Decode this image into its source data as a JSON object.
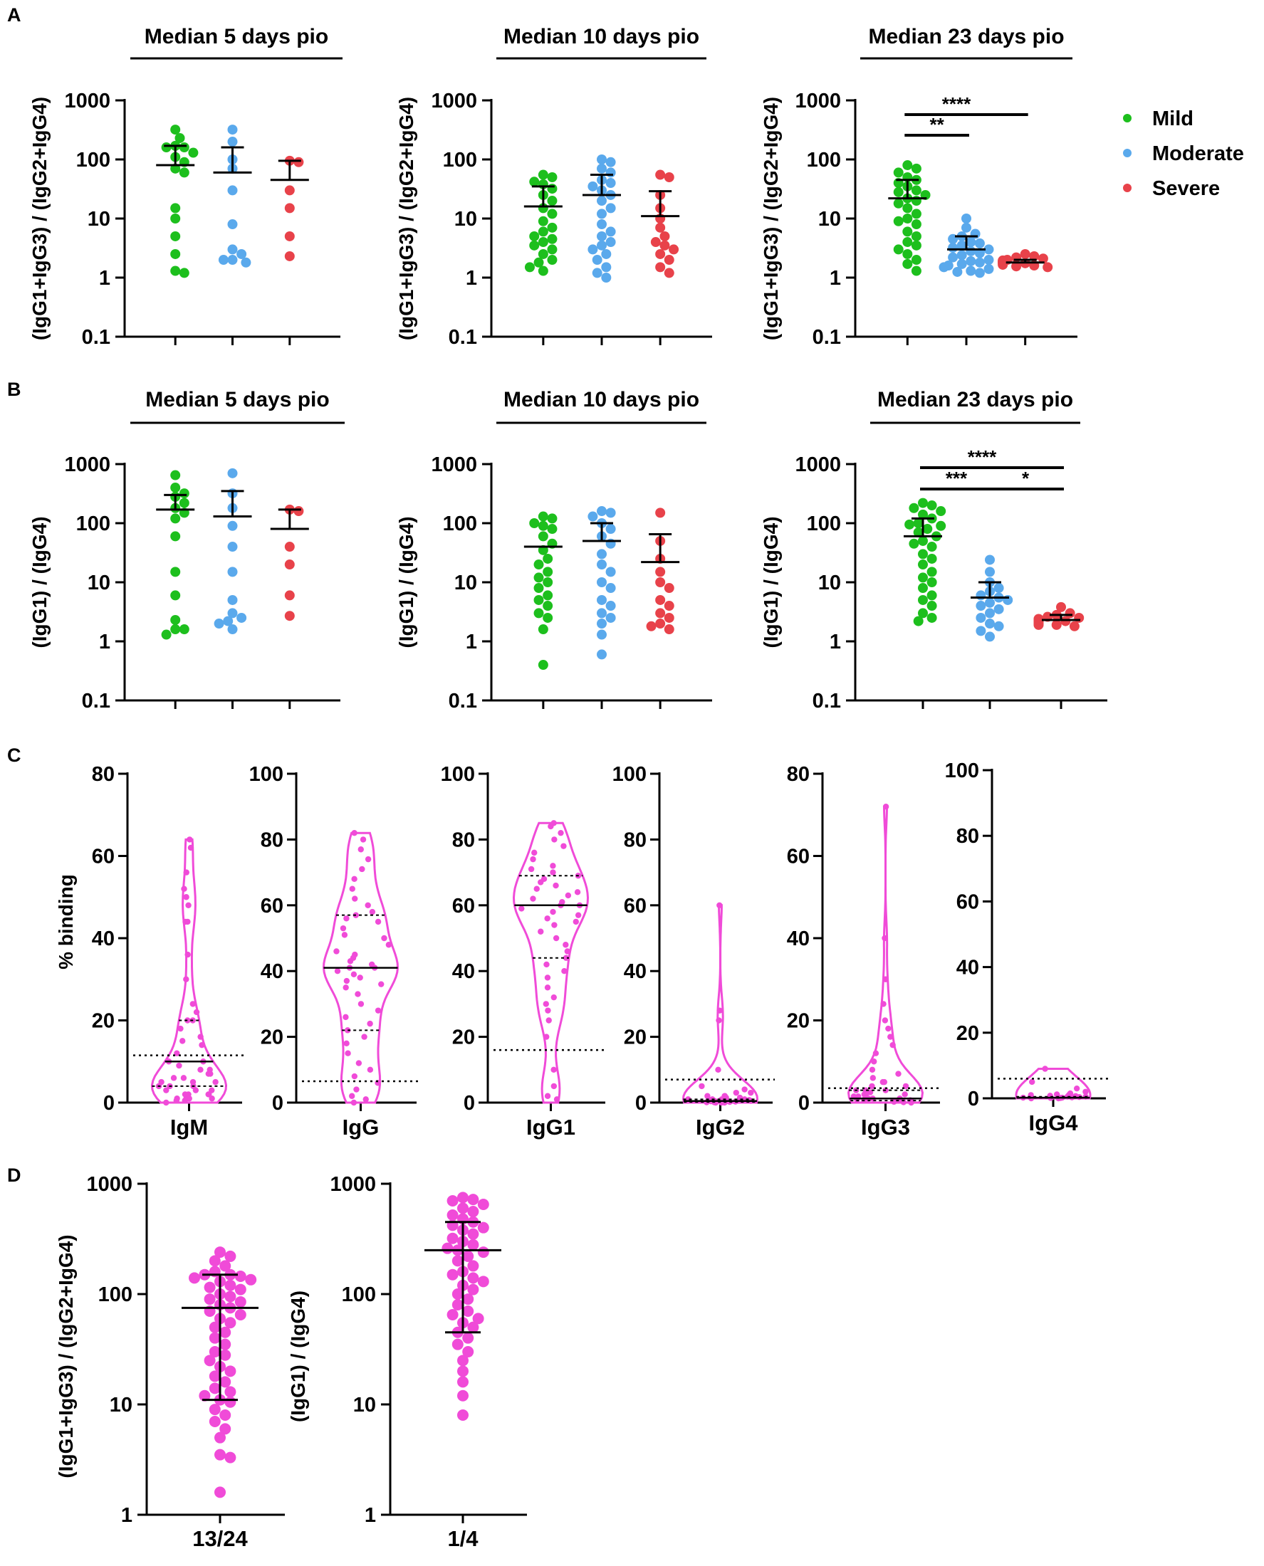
{
  "colors": {
    "mild": "#1DBF1D",
    "moderate": "#5AA9EC",
    "severe": "#E8424A",
    "pink": "#F04BD8",
    "axis": "#000000"
  },
  "legend": [
    {
      "label": "Mild",
      "color": "#1DBF1D"
    },
    {
      "label": "Moderate",
      "color": "#5AA9EC"
    },
    {
      "label": "Severe",
      "color": "#E8424A"
    }
  ],
  "panels": {
    "A": {
      "letter": "A",
      "ylabel": "(IgG1+IgG3) / (IgG2+IgG4)"
    },
    "B": {
      "letter": "B",
      "ylabel": "(IgG1) / (IgG4)"
    },
    "C": {
      "letter": "C",
      "ylabel": "% binding"
    },
    "D": {
      "letter": "D"
    }
  },
  "chart_data": [
    {
      "id": "A1",
      "type": "scatter",
      "title": "Median 5 days pio",
      "ylabel": "(IgG1+IgG3) / (IgG2+IgG4)",
      "yscale": "log",
      "ylim": [
        0.1,
        1000
      ],
      "yticks": [
        "0.1",
        "1",
        "10",
        "100",
        "1000"
      ],
      "categories": [
        "Mild",
        "Moderate",
        "Severe"
      ],
      "series": [
        {
          "name": "Mild",
          "mean": 80,
          "sem_top": 170,
          "values": [
            320,
            230,
            170,
            160,
            160,
            130,
            110,
            90,
            70,
            60,
            15,
            10,
            5,
            2.5,
            1.3,
            1.2
          ]
        },
        {
          "name": "Moderate",
          "mean": 60,
          "sem_top": 160,
          "values": [
            320,
            200,
            100,
            70,
            30,
            8,
            3,
            2.5,
            2,
            1.8,
            2
          ]
        },
        {
          "name": "Severe",
          "mean": 45,
          "sem_top": 95,
          "values": [
            95,
            90,
            30,
            15,
            5,
            2.3
          ]
        }
      ],
      "significance": []
    },
    {
      "id": "A2",
      "type": "scatter",
      "title": "Median 10 days pio",
      "ylabel": "(IgG1+IgG3) / (IgG2+IgG4)",
      "yscale": "log",
      "ylim": [
        0.1,
        1000
      ],
      "yticks": [
        "0.1",
        "1",
        "10",
        "100",
        "1000"
      ],
      "categories": [
        "Mild",
        "Moderate",
        "Severe"
      ],
      "series": [
        {
          "name": "Mild",
          "mean": 16,
          "sem_top": 35,
          "values": [
            55,
            50,
            42,
            38,
            32,
            25,
            20,
            15,
            12,
            9,
            7,
            6,
            5,
            4.5,
            4,
            3.5,
            3,
            2.5,
            2,
            1.8,
            1.5,
            1.3
          ]
        },
        {
          "name": "Moderate",
          "mean": 25,
          "sem_top": 55,
          "values": [
            100,
            90,
            70,
            60,
            45,
            40,
            35,
            30,
            25,
            20,
            15,
            12,
            8,
            6,
            5,
            4,
            3.5,
            3,
            2.5,
            2,
            1.5,
            1.2,
            1
          ]
        },
        {
          "name": "Severe",
          "mean": 11,
          "sem_top": 29,
          "values": [
            55,
            50,
            25,
            15,
            10,
            7,
            5,
            4,
            3.5,
            3,
            2.5,
            2,
            1.5,
            1.2
          ]
        }
      ],
      "significance": []
    },
    {
      "id": "A3",
      "type": "scatter",
      "title": "Median 23 days pio",
      "ylabel": "(IgG1+IgG3) / (IgG2+IgG4)",
      "yscale": "log",
      "ylim": [
        0.1,
        1000
      ],
      "yticks": [
        "0.1",
        "1",
        "10",
        "100",
        "1000"
      ],
      "categories": [
        "Mild",
        "Moderate",
        "Severe"
      ],
      "series": [
        {
          "name": "Mild",
          "mean": 22,
          "sem_top": 45,
          "values": [
            80,
            70,
            60,
            50,
            45,
            40,
            35,
            30,
            28,
            25,
            22,
            20,
            18,
            15,
            12,
            10,
            9,
            8,
            6,
            5,
            4,
            3.5,
            3,
            2.5,
            2,
            1.7,
            1.3
          ]
        },
        {
          "name": "Moderate",
          "mean": 3,
          "sem_top": 5,
          "values": [
            10,
            7,
            5.5,
            5,
            4.5,
            4,
            3.8,
            3.5,
            3.2,
            3,
            2.8,
            2.6,
            2.4,
            2.2,
            2,
            1.9,
            1.8,
            1.7,
            1.6,
            1.5,
            1.4,
            1.3,
            1.25,
            1.2
          ]
        },
        {
          "name": "Severe",
          "mean": 1.8,
          "sem_top": 2,
          "values": [
            2.5,
            2.3,
            2.2,
            2.1,
            2,
            1.95,
            1.9,
            1.85,
            1.8,
            1.78,
            1.75,
            1.7,
            1.65,
            1.6,
            1.55,
            1.5
          ]
        }
      ],
      "significance": [
        {
          "from": 0,
          "to": 2,
          "label": "****"
        },
        {
          "from": 0,
          "to": 1,
          "label": "**"
        }
      ]
    },
    {
      "id": "B1",
      "type": "scatter",
      "title": "Median 5 days pio",
      "ylabel": "(IgG1) / (IgG4)",
      "yscale": "log",
      "ylim": [
        0.1,
        1000
      ],
      "yticks": [
        "0.1",
        "1",
        "10",
        "100",
        "1000"
      ],
      "categories": [
        "Mild",
        "Moderate",
        "Severe"
      ],
      "series": [
        {
          "name": "Mild",
          "mean": 170,
          "sem_top": 300,
          "values": [
            650,
            400,
            320,
            280,
            220,
            180,
            150,
            120,
            60,
            15,
            6,
            2.3,
            1.6,
            1.6,
            1.3
          ]
        },
        {
          "name": "Moderate",
          "mean": 130,
          "sem_top": 350,
          "values": [
            700,
            320,
            180,
            90,
            40,
            15,
            5,
            3,
            2.5,
            2.2,
            2,
            1.6
          ]
        },
        {
          "name": "Severe",
          "mean": 80,
          "sem_top": 170,
          "values": [
            170,
            160,
            40,
            20,
            6,
            2.7
          ]
        }
      ],
      "significance": []
    },
    {
      "id": "B2",
      "type": "scatter",
      "title": "Median 10 days pio",
      "ylabel": "(IgG1) / (IgG4)",
      "yscale": "log",
      "ylim": [
        0.1,
        1000
      ],
      "yticks": [
        "0.1",
        "1",
        "10",
        "100",
        "1000"
      ],
      "categories": [
        "Mild",
        "Moderate",
        "Severe"
      ],
      "series": [
        {
          "name": "Mild",
          "mean": 40,
          "sem_top": 40,
          "values": [
            130,
            120,
            100,
            90,
            80,
            60,
            45,
            35,
            25,
            20,
            15,
            12,
            10,
            8,
            6,
            5,
            4,
            3,
            2.5,
            1.6,
            0.4
          ]
        },
        {
          "name": "Moderate",
          "mean": 50,
          "sem_top": 100,
          "values": [
            160,
            150,
            130,
            100,
            80,
            60,
            45,
            30,
            20,
            15,
            10,
            8,
            5,
            4,
            3,
            2.5,
            2,
            1.3,
            0.6
          ]
        },
        {
          "name": "Severe",
          "mean": 22,
          "sem_top": 65,
          "values": [
            150,
            50,
            25,
            15,
            10,
            8,
            5,
            4,
            3,
            2.5,
            2,
            1.8,
            1.6
          ]
        }
      ],
      "significance": []
    },
    {
      "id": "B3",
      "type": "scatter",
      "title": "Median 23 days pio",
      "ylabel": "(IgG1) / (IgG4)",
      "yscale": "log",
      "ylim": [
        0.1,
        1000
      ],
      "yticks": [
        "0.1",
        "1",
        "10",
        "100",
        "1000"
      ],
      "categories": [
        "Mild",
        "Moderate",
        "Severe"
      ],
      "series": [
        {
          "name": "Mild",
          "mean": 60,
          "sem_top": 120,
          "values": [
            220,
            200,
            180,
            160,
            140,
            120,
            100,
            95,
            90,
            80,
            70,
            60,
            50,
            45,
            40,
            30,
            25,
            20,
            15,
            12,
            10,
            8,
            6,
            5,
            4,
            3,
            2.5,
            2.2
          ]
        },
        {
          "name": "Moderate",
          "mean": 5.5,
          "sem_top": 10,
          "values": [
            24,
            15,
            10,
            8,
            7,
            6,
            5.5,
            5,
            4.5,
            4,
            3.5,
            3,
            2.5,
            2,
            1.8,
            1.5,
            1.2
          ]
        },
        {
          "name": "Severe",
          "mean": 2.3,
          "sem_top": 2.8,
          "values": [
            3.8,
            3,
            2.8,
            2.6,
            2.5,
            2.4,
            2.3,
            2.2,
            2.2,
            2.1,
            2.1,
            2,
            2,
            1.9,
            1.9,
            1.8
          ]
        }
      ],
      "significance": [
        {
          "from": 0,
          "to": 2,
          "label": "****"
        },
        {
          "from": 0,
          "to": 1,
          "label": "***"
        },
        {
          "from": 1,
          "to": 2,
          "label": "*"
        }
      ]
    },
    {
      "id": "C1",
      "type": "violin",
      "xlabel": "IgM",
      "ylim": [
        0,
        80
      ],
      "yticks": [
        "0",
        "20",
        "40",
        "60",
        "80"
      ],
      "median": 10,
      "q1": 4,
      "q3": 20,
      "threshold": 11.5,
      "max": 64,
      "values": [
        64,
        62,
        56,
        52,
        50,
        48,
        44,
        44,
        36,
        30,
        24,
        22,
        20,
        20,
        18,
        16,
        15,
        14,
        12,
        10,
        10,
        9,
        8,
        8,
        7,
        7,
        6,
        6,
        5,
        5,
        5,
        4,
        4,
        4,
        3,
        3,
        3,
        2,
        2,
        2,
        2,
        1,
        1,
        1,
        1,
        0.5,
        0.5,
        0
      ]
    },
    {
      "id": "C2",
      "type": "violin",
      "xlabel": "IgG",
      "ylim": [
        0,
        100
      ],
      "yticks": [
        "0",
        "20",
        "40",
        "60",
        "80",
        "100"
      ],
      "median": 41,
      "q1": 22,
      "q3": 57,
      "threshold": 6.5,
      "max": 82,
      "values": [
        82,
        80,
        77,
        74,
        71,
        68,
        65,
        62,
        60,
        58,
        57,
        56,
        55,
        53,
        51,
        50,
        48,
        46,
        45,
        44,
        43,
        42,
        41,
        41,
        40,
        39,
        38,
        37,
        36,
        35,
        33,
        30,
        28,
        26,
        24,
        22,
        20,
        18,
        15,
        12,
        10,
        8,
        6,
        4,
        2,
        1,
        0
      ]
    },
    {
      "id": "C3",
      "type": "violin",
      "xlabel": "IgG1",
      "ylim": [
        0,
        100
      ],
      "yticks": [
        "0",
        "20",
        "40",
        "60",
        "80",
        "100"
      ],
      "median": 60,
      "q1": 44,
      "q3": 69,
      "threshold": 16,
      "max": 85,
      "values": [
        85,
        84,
        82,
        80,
        78,
        76,
        74,
        72,
        71,
        70,
        69,
        68,
        67,
        66,
        65,
        64,
        63,
        62,
        61,
        60,
        60,
        59,
        58,
        57,
        56,
        55,
        54,
        52,
        50,
        48,
        46,
        44,
        42,
        40,
        38,
        35,
        32,
        30,
        28,
        25,
        20,
        10,
        5,
        2,
        1
      ]
    },
    {
      "id": "C4",
      "type": "violin",
      "xlabel": "IgG2",
      "ylim": [
        0,
        100
      ],
      "yticks": [
        "0",
        "20",
        "40",
        "60",
        "80",
        "100"
      ],
      "median": 0.5,
      "q1": 0.2,
      "q3": 1,
      "threshold": 7,
      "max": 60,
      "values": [
        60,
        28,
        25,
        10,
        5,
        4,
        3,
        3,
        2,
        2,
        2,
        1.5,
        1.5,
        1,
        1,
        1,
        1,
        0.8,
        0.8,
        0.6,
        0.5,
        0.5,
        0.4,
        0.3,
        0.3,
        0.2,
        0.2,
        0.1,
        0.1,
        0,
        0,
        0
      ]
    },
    {
      "id": "C5",
      "type": "violin",
      "xlabel": "IgG3",
      "ylim": [
        0,
        80
      ],
      "yticks": [
        "0",
        "20",
        "40",
        "60",
        "80"
      ],
      "median": 1,
      "q1": 0.5,
      "q3": 3,
      "threshold": 3.5,
      "max": 72,
      "values": [
        72,
        40,
        30,
        24,
        20,
        18,
        16,
        14,
        12,
        10,
        8,
        7,
        6,
        5,
        5,
        4,
        4,
        3,
        3,
        3,
        2.5,
        2,
        2,
        2,
        1.5,
        1.5,
        1,
        1,
        1,
        1,
        0.8,
        0.6,
        0.5,
        0.5,
        0.4,
        0.3,
        0.2,
        0.1,
        0
      ]
    },
    {
      "id": "C6",
      "type": "violin",
      "xlabel": "IgG4",
      "ylim": [
        0,
        100
      ],
      "yticks": [
        "0",
        "20",
        "40",
        "60",
        "80",
        "100"
      ],
      "median": 0.2,
      "q1": 0.1,
      "q3": 0.5,
      "threshold": 6,
      "max": 9,
      "values": [
        9,
        5,
        3,
        2,
        1.5,
        1.2,
        1,
        1,
        0.8,
        0.7,
        0.6,
        0.5,
        0.5,
        0.4,
        0.3,
        0.3,
        0.2,
        0.2,
        0.1,
        0.1,
        0,
        0
      ]
    },
    {
      "id": "D1",
      "type": "scatter",
      "ylabel": "(IgG1+IgG3) / (IgG2+IgG4)",
      "xlabel": "13/24",
      "yscale": "log",
      "ylim": [
        1,
        1000
      ],
      "yticks": [
        "1",
        "10",
        "100",
        "1000"
      ],
      "median": 75,
      "q1": 11,
      "q3": 150,
      "values": [
        240,
        220,
        200,
        180,
        160,
        150,
        150,
        145,
        140,
        135,
        130,
        120,
        115,
        110,
        100,
        95,
        90,
        85,
        80,
        75,
        70,
        65,
        60,
        55,
        50,
        45,
        40,
        35,
        30,
        28,
        25,
        22,
        20,
        18,
        16,
        14,
        13,
        12,
        11,
        10.5,
        9,
        8,
        7,
        6,
        5,
        3.5,
        3.3,
        1.6
      ]
    },
    {
      "id": "D2",
      "type": "scatter",
      "ylabel": "(IgG1) / (IgG4)",
      "xlabel": "1/4",
      "yscale": "log",
      "ylim": [
        1,
        1000
      ],
      "yticks": [
        "1",
        "10",
        "100",
        "1000"
      ],
      "median": 250,
      "q1": 45,
      "q3": 450,
      "values": [
        750,
        720,
        700,
        650,
        600,
        560,
        520,
        480,
        450,
        420,
        400,
        380,
        350,
        320,
        300,
        280,
        260,
        250,
        240,
        220,
        200,
        180,
        160,
        150,
        140,
        130,
        120,
        110,
        100,
        90,
        80,
        70,
        65,
        60,
        55,
        50,
        45,
        40,
        35,
        30,
        25,
        20,
        16,
        12,
        8
      ]
    }
  ]
}
